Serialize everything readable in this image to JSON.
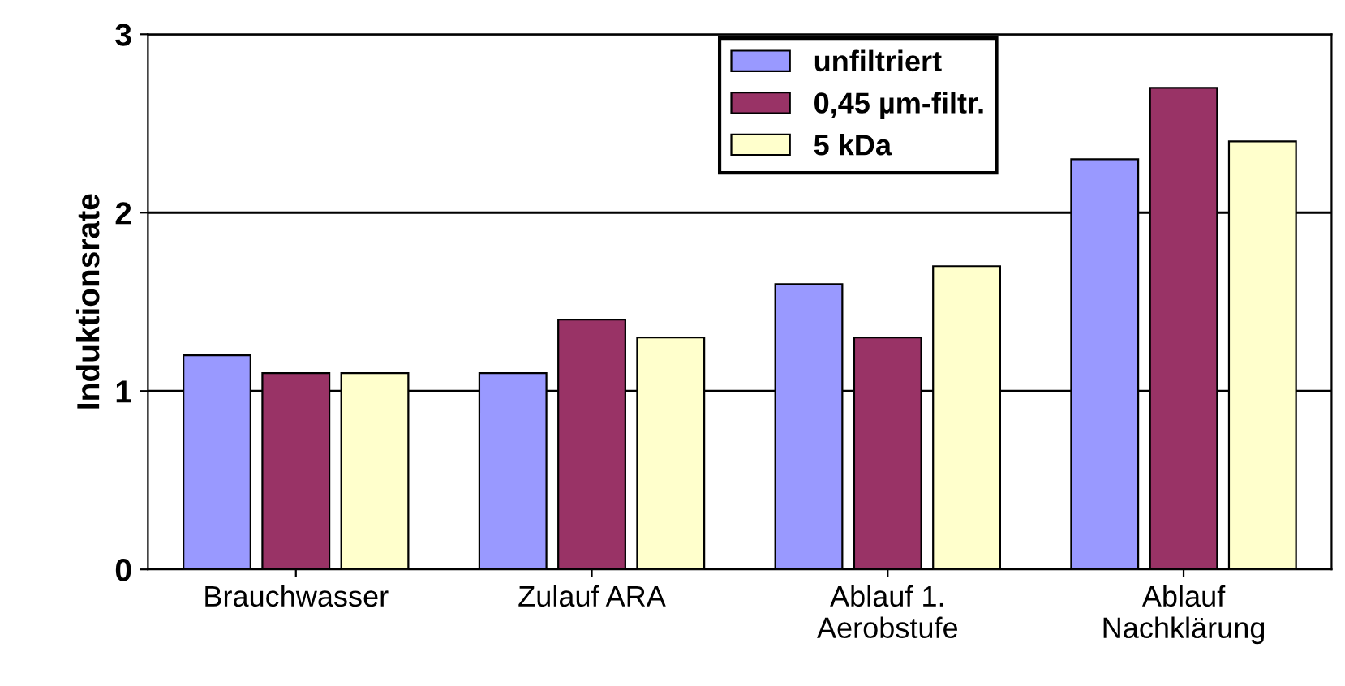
{
  "chart_data": {
    "type": "bar",
    "ylabel": "Induktionsrate",
    "categories": [
      "Brauchwasser",
      "Zulauf ARA",
      "Ablauf 1.\nAerobstufe",
      "Ablauf\nNachklärung"
    ],
    "series": [
      {
        "name": "unfiltriert",
        "color": "#9999ff",
        "values": [
          1.2,
          1.1,
          1.6,
          2.3
        ]
      },
      {
        "name": "0,45 µm-filtr.",
        "color": "#993366",
        "values": [
          1.1,
          1.4,
          1.3,
          2.7
        ]
      },
      {
        "name": "5 kDa",
        "color": "#ffffcc",
        "values": [
          1.1,
          1.3,
          1.7,
          2.4
        ]
      }
    ],
    "ylim": [
      0,
      3
    ],
    "yticks": [
      0,
      1,
      2,
      3
    ],
    "grid": "y",
    "legend": "top"
  }
}
